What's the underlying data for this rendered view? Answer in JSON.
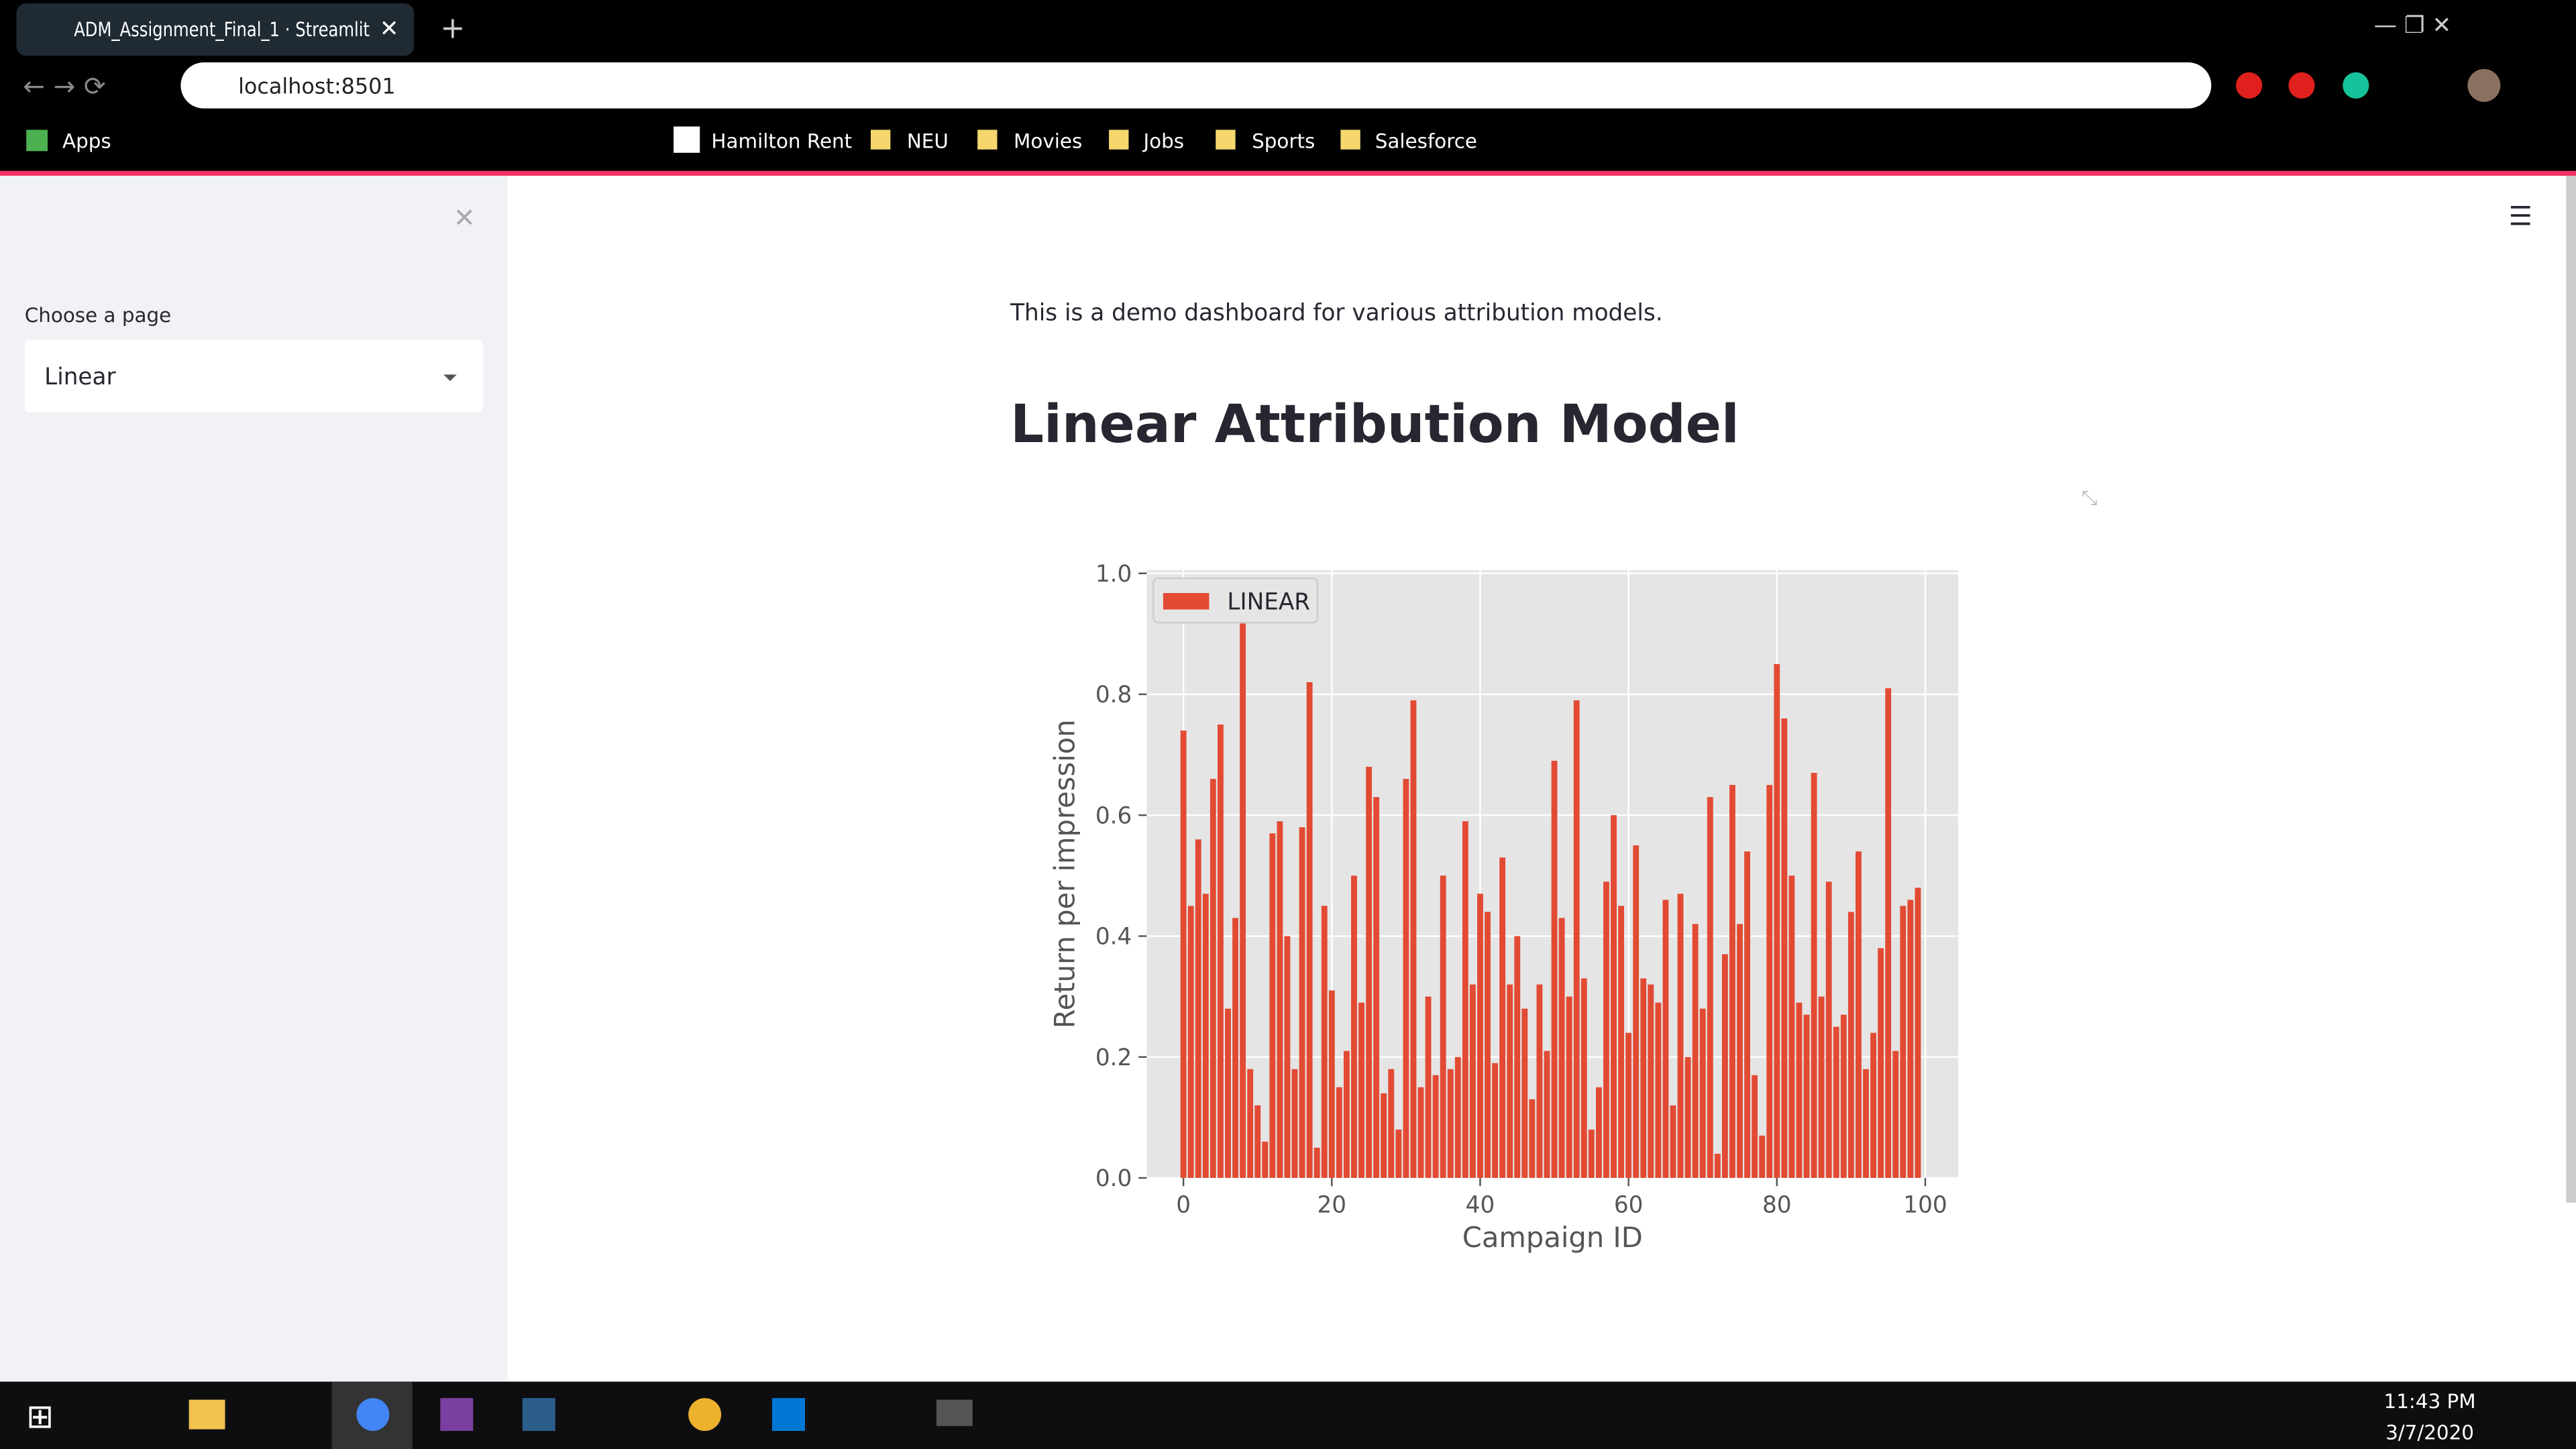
{
  "browser": {
    "tab_title": "ADM_Assignment_Final_1 · Streamlit",
    "url": "localhost:8501",
    "bookmarks": [
      "Apps",
      "Hamilton Rent",
      "NEU",
      "Movies",
      "Jobs",
      "Sports",
      "Salesforce"
    ]
  },
  "sidebar": {
    "label": "Choose a page",
    "selected": "Linear"
  },
  "main": {
    "intro": "This is a demo dashboard for various attribution models.",
    "heading": "Linear Attribution Model"
  },
  "taskbar": {
    "time": "11:43 PM",
    "date": "3/7/2020"
  },
  "chart_data": {
    "type": "bar",
    "xlabel": "Campaign ID",
    "ylabel": "Return per impression",
    "x": [
      0,
      1,
      2,
      3,
      4,
      5,
      6,
      7,
      8,
      9,
      10,
      11,
      12,
      13,
      14,
      15,
      16,
      17,
      18,
      19,
      20,
      21,
      22,
      23,
      24,
      25,
      26,
      27,
      28,
      29,
      30,
      31,
      32,
      33,
      34,
      35,
      36,
      37,
      38,
      39,
      40,
      41,
      42,
      43,
      44,
      45,
      46,
      47,
      48,
      49,
      50,
      51,
      52,
      53,
      54,
      55,
      56,
      57,
      58,
      59,
      60,
      61,
      62,
      63,
      64,
      65,
      66,
      67,
      68,
      69,
      70,
      71,
      72,
      73,
      74,
      75,
      76,
      77,
      78,
      79,
      80,
      81,
      82,
      83,
      84,
      85,
      86,
      87,
      88,
      89,
      90,
      91,
      92,
      93,
      94,
      95,
      96,
      97,
      98,
      99
    ],
    "series": [
      {
        "name": "LINEAR",
        "color": "#e24a33",
        "values": [
          0.74,
          0.45,
          0.56,
          0.47,
          0.66,
          0.75,
          0.28,
          0.43,
          0.93,
          0.18,
          0.12,
          0.06,
          0.57,
          0.59,
          0.4,
          0.18,
          0.58,
          0.82,
          0.05,
          0.45,
          0.31,
          0.15,
          0.21,
          0.5,
          0.29,
          0.68,
          0.63,
          0.14,
          0.18,
          0.08,
          0.66,
          0.79,
          0.15,
          0.3,
          0.17,
          0.5,
          0.18,
          0.2,
          0.59,
          0.32,
          0.47,
          0.44,
          0.19,
          0.53,
          0.32,
          0.4,
          0.28,
          0.13,
          0.32,
          0.21,
          0.69,
          0.43,
          0.3,
          0.79,
          0.33,
          0.08,
          0.15,
          0.49,
          0.6,
          0.45,
          0.24,
          0.55,
          0.33,
          0.32,
          0.29,
          0.46,
          0.12,
          0.47,
          0.2,
          0.42,
          0.28,
          0.63,
          0.04,
          0.37,
          0.65,
          0.42,
          0.54,
          0.17,
          0.07,
          0.65,
          0.85,
          0.76,
          0.5,
          0.29,
          0.27,
          0.67,
          0.3,
          0.49,
          0.25,
          0.27,
          0.44,
          0.54,
          0.18,
          0.24,
          0.38,
          0.81,
          0.21,
          0.45,
          0.46,
          0.48
        ]
      }
    ],
    "xlim": [
      -4.95,
      104.45
    ],
    "ylim": [
      0,
      1.0
    ],
    "xticks": [
      0,
      20,
      40,
      60,
      80,
      100
    ],
    "yticks": [
      {
        "value": 0,
        "label": "0.0"
      },
      0.2,
      0.4,
      0.6,
      0.8,
      {
        "value": 1,
        "label": "1.0"
      }
    ],
    "grid": true,
    "legend": "upper left"
  }
}
